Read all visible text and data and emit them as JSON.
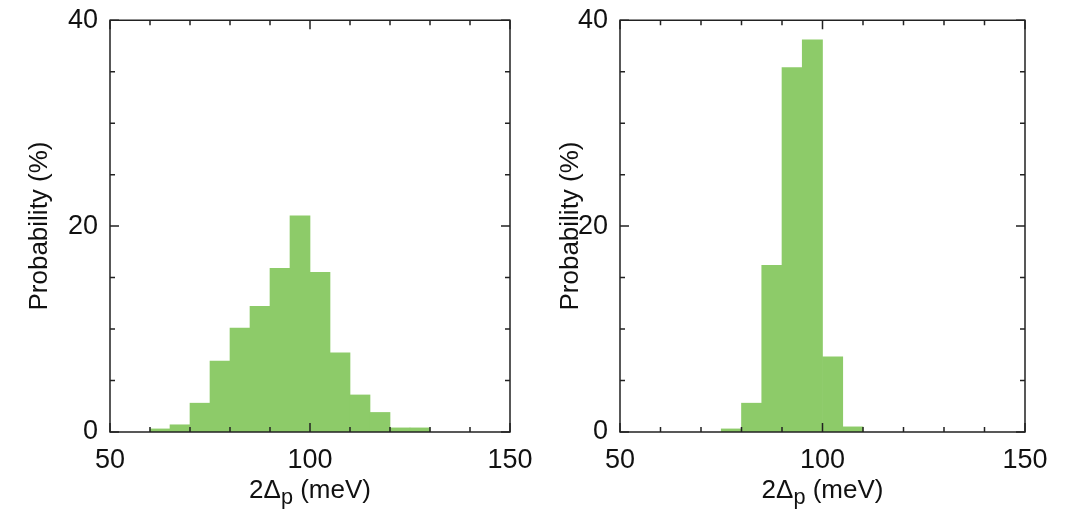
{
  "chart_data": [
    {
      "type": "histogram",
      "xlabel": "2Δ$_{p}$ (meV)",
      "ylabel": "Probability (%)",
      "color": "#8dcb69",
      "bins": [
        60,
        65,
        70,
        75,
        80,
        85,
        90,
        95,
        100,
        105,
        110,
        115,
        120,
        125,
        130,
        135
      ],
      "values": [
        0.3,
        0.7,
        2.8,
        6.9,
        10.1,
        12.2,
        15.9,
        21.0,
        15.5,
        7.7,
        3.6,
        1.9,
        0.4,
        0.4,
        null
      ],
      "xlim": [
        50,
        150
      ],
      "ylim": [
        0,
        40
      ],
      "xticks": [
        50,
        {
          "value": 60,
          "label": null
        },
        {
          "value": 70,
          "label": null
        },
        {
          "value": 80,
          "label": null
        },
        {
          "value": 90,
          "label": null
        },
        100,
        {
          "value": 110,
          "label": null
        },
        {
          "value": 120,
          "label": null
        },
        {
          "value": 130,
          "label": null
        },
        {
          "value": 140,
          "label": null
        },
        150
      ],
      "yticks": [
        0,
        {
          "value": 5,
          "label": null
        },
        {
          "value": 10,
          "label": null
        },
        {
          "value": 15,
          "label": null
        },
        20,
        {
          "value": 25,
          "label": null
        },
        {
          "value": 30,
          "label": null
        },
        {
          "value": 35,
          "label": null
        },
        40
      ]
    },
    {
      "type": "histogram",
      "xlabel": "2Δ$_{p}$ (meV)",
      "ylabel": "Probability (%)",
      "color": "#8dcb69",
      "bins": [
        70,
        75,
        80,
        85,
        90,
        95,
        100,
        105,
        110,
        115
      ],
      "values": [
        null,
        0.3,
        2.8,
        16.2,
        35.4,
        38.1,
        7.3,
        0.5,
        null
      ],
      "xlim": [
        50,
        150
      ],
      "ylim": [
        0,
        40
      ],
      "xticks": [
        50,
        {
          "value": 60,
          "label": null
        },
        {
          "value": 70,
          "label": null
        },
        {
          "value": 80,
          "label": null
        },
        {
          "value": 90,
          "label": null
        },
        100,
        {
          "value": 110,
          "label": null
        },
        {
          "value": 120,
          "label": null
        },
        {
          "value": 130,
          "label": null
        },
        {
          "value": 140,
          "label": null
        },
        150
      ],
      "yticks": [
        0,
        {
          "value": 5,
          "label": null
        },
        {
          "value": 10,
          "label": null
        },
        {
          "value": 15,
          "label": null
        },
        20,
        {
          "value": 25,
          "label": null
        },
        {
          "value": 30,
          "label": null
        },
        {
          "value": 35,
          "label": null
        },
        40
      ]
    }
  ]
}
